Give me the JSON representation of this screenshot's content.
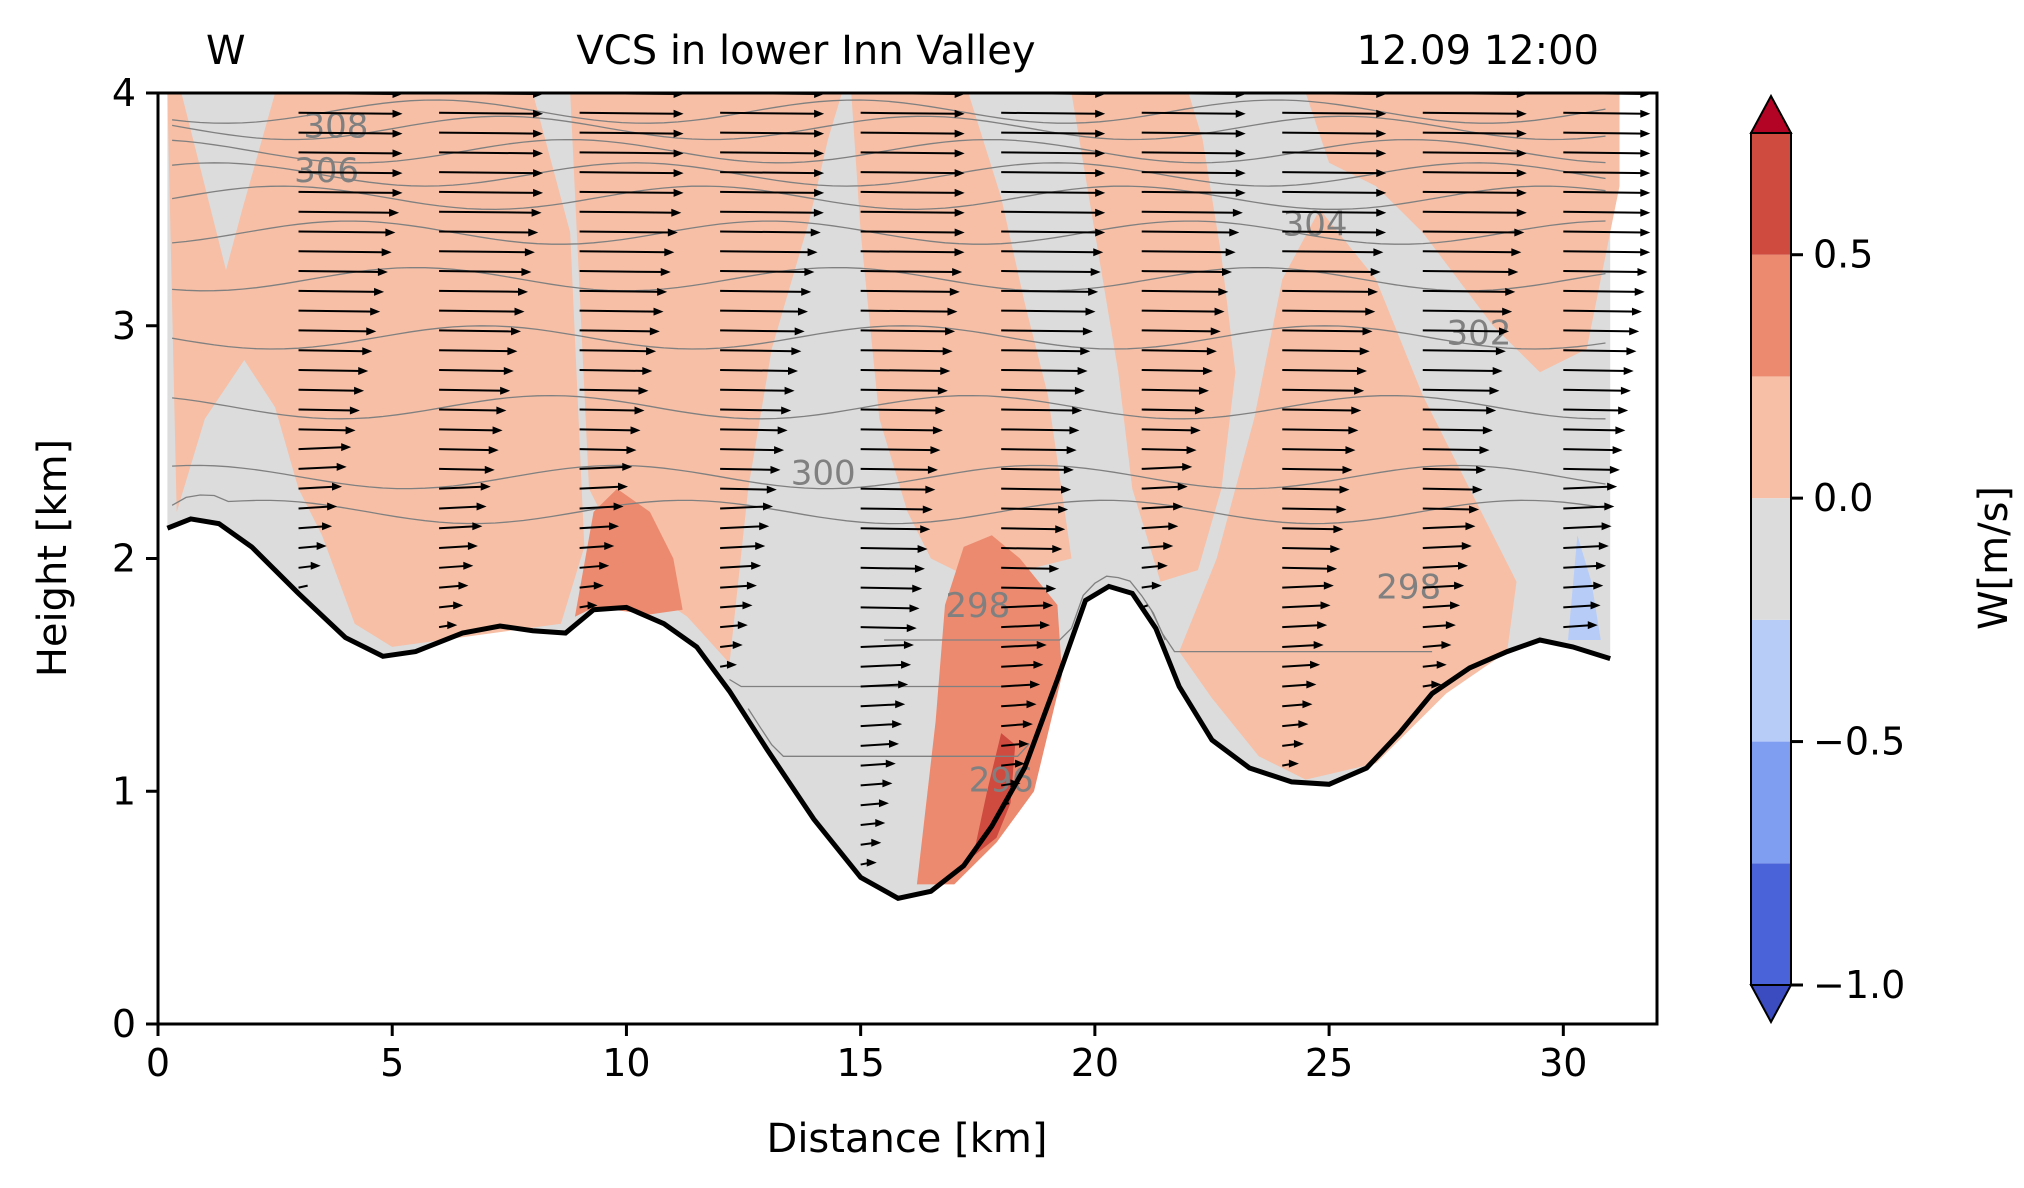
{
  "chart_data": {
    "type": "contour",
    "title_left": "W",
    "title_center": "VCS in lower Inn Valley",
    "title_right": "12.09 12:00",
    "xlabel": "Distance [km]",
    "ylabel": "Height [km]",
    "xlim": [
      0,
      32
    ],
    "ylim": [
      0,
      4
    ],
    "xticks": [
      0,
      5,
      10,
      15,
      20,
      25,
      30
    ],
    "yticks": [
      0,
      1,
      2,
      3,
      4
    ],
    "colorbar": {
      "label": "W[m/s]",
      "ticks": [
        -1.0,
        -0.5,
        0.0,
        0.5
      ],
      "tick_labels": [
        "−1.0",
        "−0.5",
        "0.0",
        "0.5"
      ],
      "levels": [
        -1.0,
        -0.75,
        -0.5,
        -0.25,
        0.0,
        0.25,
        0.5,
        0.75
      ],
      "colors": [
        "#4b63d9",
        "#7f9ef2",
        "#b7cdf8",
        "#dcdcdc",
        "#f6bfa6",
        "#eb8a6f",
        "#cf4a3f"
      ],
      "extend_low_color": "#3b4cc0",
      "extend_high_color": "#b40426"
    },
    "terrain": {
      "x": [
        0.2,
        0.7,
        1.3,
        2.0,
        3.0,
        4.0,
        4.8,
        5.5,
        6.5,
        7.3,
        8.0,
        8.7,
        9.3,
        10.0,
        10.8,
        11.5,
        12.2,
        13.0,
        14.0,
        15.0,
        15.8,
        16.5,
        17.2,
        17.8,
        18.5,
        19.2,
        19.8,
        20.3,
        20.8,
        21.3,
        21.8,
        22.5,
        23.3,
        24.2,
        25.0,
        25.8,
        26.5,
        27.2,
        28.0,
        28.8,
        29.5,
        30.2,
        31.0
      ],
      "height": [
        2.13,
        2.17,
        2.15,
        2.05,
        1.85,
        1.66,
        1.58,
        1.6,
        1.68,
        1.71,
        1.69,
        1.68,
        1.78,
        1.79,
        1.72,
        1.62,
        1.43,
        1.18,
        0.88,
        0.63,
        0.54,
        0.57,
        0.68,
        0.85,
        1.1,
        1.48,
        1.82,
        1.88,
        1.85,
        1.7,
        1.45,
        1.22,
        1.1,
        1.04,
        1.03,
        1.1,
        1.25,
        1.42,
        1.53,
        1.6,
        1.65,
        1.62,
        1.57
      ]
    },
    "w_regions": [
      {
        "level": 0.1,
        "polygon": [
          [
            0.5,
            4.0
          ],
          [
            1.5,
            3.2
          ],
          [
            2.0,
            2.9
          ],
          [
            1.0,
            2.6
          ],
          [
            0.4,
            2.2
          ],
          [
            0.2,
            4.0
          ]
        ]
      },
      {
        "level": 0.1,
        "polygon": [
          [
            1.2,
            3.05
          ],
          [
            2.5,
            2.65
          ],
          [
            3.0,
            2.3
          ],
          [
            3.5,
            2.1
          ],
          [
            4.2,
            1.72
          ],
          [
            5.0,
            1.62
          ],
          [
            8.6,
            1.72
          ],
          [
            9.1,
            2.05
          ],
          [
            8.8,
            3.4
          ],
          [
            8.0,
            4.0
          ],
          [
            2.5,
            4.0
          ],
          [
            1.8,
            3.5
          ]
        ]
      },
      {
        "level": 0.1,
        "polygon": [
          [
            8.8,
            4.0
          ],
          [
            9.2,
            2.3
          ],
          [
            10.2,
            1.9
          ],
          [
            11.3,
            1.75
          ],
          [
            12.2,
            1.55
          ],
          [
            12.6,
            2.3
          ],
          [
            13.1,
            2.9
          ],
          [
            13.9,
            3.45
          ],
          [
            14.3,
            3.8
          ],
          [
            14.6,
            4.0
          ]
        ]
      },
      {
        "level": 0.1,
        "polygon": [
          [
            14.8,
            4.0
          ],
          [
            15.0,
            3.4
          ],
          [
            15.4,
            2.6
          ],
          [
            16.0,
            2.2
          ],
          [
            16.5,
            2.0
          ],
          [
            17.5,
            1.9
          ],
          [
            18.5,
            1.95
          ],
          [
            19.5,
            2.0
          ],
          [
            19.0,
            2.7
          ],
          [
            18.5,
            3.1
          ],
          [
            18.0,
            3.55
          ],
          [
            17.3,
            4.0
          ]
        ]
      },
      {
        "level": 0.1,
        "polygon": [
          [
            19.5,
            4.0
          ],
          [
            20.0,
            3.4
          ],
          [
            20.5,
            2.8
          ],
          [
            20.8,
            2.3
          ],
          [
            21.4,
            1.9
          ],
          [
            22.2,
            1.95
          ],
          [
            22.7,
            2.3
          ],
          [
            23.0,
            2.8
          ],
          [
            22.7,
            3.3
          ],
          [
            22.3,
            3.8
          ],
          [
            22.0,
            4.0
          ]
        ]
      },
      {
        "level": 0.1,
        "polygon": [
          [
            21.8,
            1.6
          ],
          [
            22.6,
            2.0
          ],
          [
            23.4,
            2.6
          ],
          [
            24.0,
            3.2
          ],
          [
            24.8,
            3.5
          ],
          [
            26.0,
            3.2
          ],
          [
            27.0,
            2.7
          ],
          [
            28.0,
            2.3
          ],
          [
            29.0,
            1.9
          ],
          [
            28.8,
            1.6
          ],
          [
            27.5,
            1.42
          ],
          [
            26.0,
            1.12
          ],
          [
            24.5,
            1.05
          ],
          [
            23.5,
            1.15
          ],
          [
            22.5,
            1.4
          ]
        ]
      },
      {
        "level": 0.1,
        "polygon": [
          [
            24.5,
            4.0
          ],
          [
            25.0,
            3.7
          ],
          [
            26.0,
            3.6
          ],
          [
            27.0,
            3.4
          ],
          [
            28.5,
            3.0
          ],
          [
            29.5,
            2.8
          ],
          [
            30.5,
            2.9
          ],
          [
            31.2,
            3.6
          ],
          [
            31.2,
            4.0
          ]
        ]
      },
      {
        "level": 0.4,
        "polygon": [
          [
            8.9,
            1.75
          ],
          [
            9.3,
            2.2
          ],
          [
            9.8,
            2.3
          ],
          [
            10.5,
            2.2
          ],
          [
            11.0,
            2.0
          ],
          [
            11.2,
            1.78
          ],
          [
            10.5,
            1.76
          ],
          [
            9.7,
            1.78
          ],
          [
            9.2,
            1.78
          ]
        ]
      },
      {
        "level": 0.4,
        "polygon": [
          [
            16.2,
            0.6
          ],
          [
            16.6,
            1.3
          ],
          [
            16.8,
            1.8
          ],
          [
            17.2,
            2.05
          ],
          [
            17.8,
            2.1
          ],
          [
            18.4,
            2.0
          ],
          [
            19.2,
            1.8
          ],
          [
            19.3,
            1.5
          ],
          [
            18.7,
            1.0
          ],
          [
            17.9,
            0.78
          ],
          [
            17.0,
            0.6
          ]
        ]
      },
      {
        "level": 0.6,
        "polygon": [
          [
            17.4,
            0.72
          ],
          [
            17.7,
            1.0
          ],
          [
            18.0,
            1.25
          ],
          [
            18.3,
            1.2
          ],
          [
            18.2,
            0.95
          ],
          [
            17.9,
            0.8
          ]
        ]
      },
      {
        "level": -0.4,
        "polygon": [
          [
            30.1,
            1.65
          ],
          [
            30.3,
            2.1
          ],
          [
            30.6,
            1.9
          ],
          [
            30.8,
            1.65
          ]
        ]
      }
    ],
    "theta_contours": [
      {
        "label": "308",
        "label_pos": [
          3.8,
          3.86
        ]
      },
      {
        "label": "306",
        "label_pos": [
          3.6,
          3.67
        ]
      },
      {
        "label": "304",
        "label_pos": [
          24.7,
          3.44
        ]
      },
      {
        "label": "302",
        "label_pos": [
          28.2,
          2.97
        ]
      },
      {
        "label": "300",
        "label_pos": [
          14.2,
          2.37
        ]
      },
      {
        "label": "298",
        "label_pos": [
          17.5,
          1.8
        ]
      },
      {
        "label": "298",
        "label_pos": [
          26.7,
          1.88
        ]
      },
      {
        "label": "296",
        "label_pos": [
          18.0,
          1.05
        ]
      }
    ],
    "wind_columns_x": [
      3.0,
      6.0,
      9.0,
      12.0,
      15.0,
      18.0,
      21.0,
      24.0,
      27.0,
      30.0
    ]
  }
}
